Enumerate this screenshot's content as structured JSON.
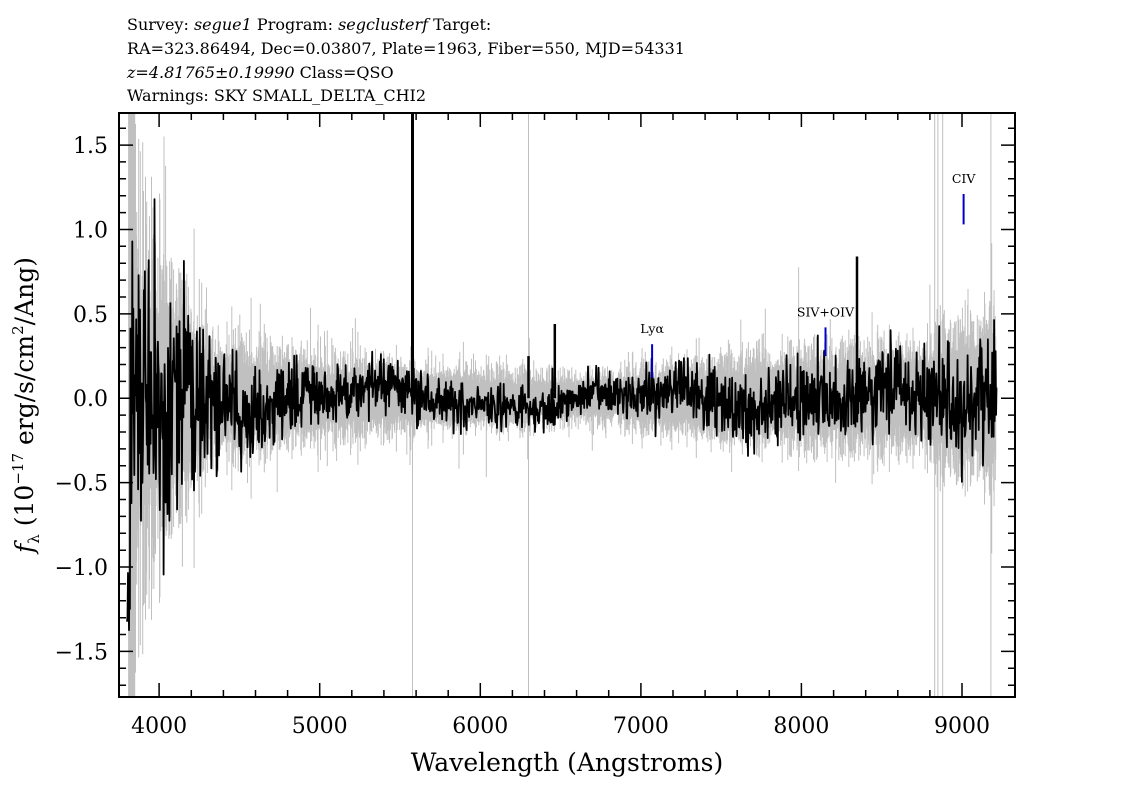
{
  "header": {
    "survey_label": "Survey:",
    "survey": "segue1",
    "program_label": "Program:",
    "program": "segclusterf",
    "target_label": "Target:",
    "coords_line": "RA=323.86494, Dec=0.03807, Plate=1963, Fiber=550, MJD=54331",
    "redshift": "z=4.81765±0.19990",
    "class_text": "Class=QSO",
    "warnings_line": "Warnings: SKY SMALL_DELTA_CHI2"
  },
  "chart_data": {
    "type": "line",
    "xlabel": "Wavelength (Angstroms)",
    "ylabel_main": "f",
    "ylabel_sub": "λ",
    "ylabel_prefix": "(10",
    "ylabel_exp": "−17",
    "ylabel_mid": "erg/s/cm",
    "ylabel_exp2": "2",
    "ylabel_suffix": "/Ang)",
    "xlim": [
      3750,
      9330
    ],
    "ylim": [
      -1.77,
      1.69
    ],
    "xticks": [
      4000,
      5000,
      6000,
      7000,
      8000,
      9000
    ],
    "yticks": [
      1.5,
      1.0,
      0.5,
      0.0,
      -0.5,
      -1.0,
      -1.5
    ],
    "ytick_labels": [
      "1.5",
      "1.0",
      "0.5",
      "0.0",
      "−0.5",
      "−1.0",
      "−1.5"
    ],
    "series": [
      {
        "role": "flux",
        "color": "#000000"
      },
      {
        "role": "error",
        "color": "#c0c0c0"
      }
    ],
    "lines": [
      {
        "label": "Lyα",
        "wavelength": 7070,
        "y_low": 0.12,
        "y_high": 0.32,
        "color": "#0000cc"
      },
      {
        "label": "SIV+OIV",
        "wavelength": 8150,
        "y_low": 0.25,
        "y_high": 0.42,
        "color": "#0000cc"
      },
      {
        "label": "CIV",
        "wavelength": 9010,
        "y_low": 1.03,
        "y_high": 1.21,
        "color": "#0000cc"
      }
    ],
    "spikes": [
      {
        "wavelength": 5578,
        "flux": 1.69
      },
      {
        "wavelength": 6300,
        "flux": 0.25
      },
      {
        "wavelength": 6464,
        "flux": 0.44
      },
      {
        "wavelength": 8346,
        "flux": 0.84
      }
    ]
  }
}
